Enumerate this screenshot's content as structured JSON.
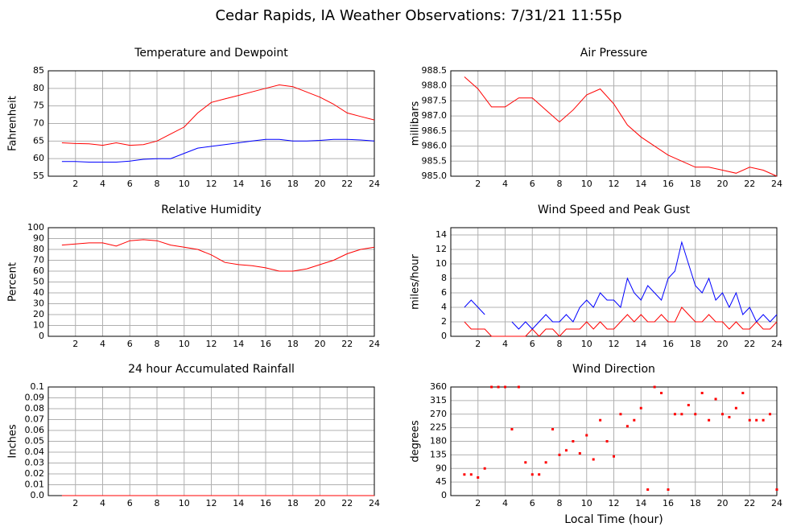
{
  "title": "Cedar Rapids, IA Weather Observations: 7/31/21 11:55p",
  "chart_data": [
    {
      "type": "line",
      "title": "Temperature and Dewpoint",
      "ylabel": "Fahrenheit",
      "x": [
        1,
        2,
        3,
        4,
        5,
        6,
        7,
        8,
        9,
        10,
        11,
        12,
        13,
        14,
        15,
        16,
        17,
        18,
        19,
        20,
        21,
        22,
        23,
        24
      ],
      "series": [
        {
          "color": "#ff0000",
          "values": [
            64.5,
            64.3,
            64.2,
            63.8,
            64.5,
            63.8,
            64,
            65,
            67,
            69,
            73,
            76,
            77,
            78,
            79,
            80,
            81,
            80.5,
            79,
            77.5,
            75.5,
            73,
            72,
            71
          ]
        },
        {
          "color": "#0000ff",
          "values": [
            59.2,
            59.2,
            59,
            59,
            59,
            59.3,
            59.8,
            60,
            60,
            61.5,
            63,
            63.5,
            64,
            64.5,
            65,
            65.5,
            65.5,
            65,
            65,
            65.2,
            65.5,
            65.5,
            65.3,
            65
          ]
        }
      ],
      "xlim": [
        0,
        24
      ],
      "xticks": [
        2,
        4,
        6,
        8,
        10,
        12,
        14,
        16,
        18,
        20,
        22,
        24
      ],
      "ylim": [
        55,
        85
      ],
      "yticks": [
        55,
        60,
        65,
        70,
        75,
        80,
        85
      ],
      "grid": true
    },
    {
      "type": "line",
      "title": "Air Pressure",
      "ylabel": "millibars",
      "x": [
        1,
        2,
        3,
        4,
        5,
        6,
        7,
        8,
        9,
        10,
        11,
        12,
        13,
        14,
        15,
        16,
        17,
        18,
        19,
        20,
        21,
        22,
        23,
        24
      ],
      "series": [
        {
          "color": "#ff0000",
          "values": [
            988.3,
            987.9,
            987.3,
            987.3,
            987.6,
            987.6,
            987.2,
            986.8,
            987.2,
            987.7,
            987.9,
            987.4,
            986.7,
            986.3,
            986.0,
            985.7,
            985.5,
            985.3,
            985.3,
            985.2,
            985.1,
            985.3,
            985.2,
            985.0
          ]
        }
      ],
      "xlim": [
        0,
        24
      ],
      "xticks": [
        2,
        4,
        6,
        8,
        10,
        12,
        14,
        16,
        18,
        20,
        22,
        24
      ],
      "ylim": [
        985,
        988.5
      ],
      "yticks": [
        {
          "value": 985,
          "label": "985.0"
        },
        985.5,
        {
          "value": 986,
          "label": "986.0"
        },
        986.5,
        {
          "value": 987,
          "label": "987.0"
        },
        987.5,
        {
          "value": 988,
          "label": "988.0"
        },
        988.5
      ],
      "grid": true
    },
    {
      "type": "line",
      "title": "Relative Humidity",
      "ylabel": "Percent",
      "x": [
        1,
        2,
        3,
        4,
        5,
        6,
        7,
        8,
        9,
        10,
        11,
        12,
        13,
        14,
        15,
        16,
        17,
        18,
        19,
        20,
        21,
        22,
        23,
        24
      ],
      "series": [
        {
          "color": "#ff0000",
          "values": [
            84,
            85,
            86,
            86,
            83,
            88,
            89,
            88,
            84,
            82,
            80,
            75,
            68,
            66,
            65,
            63,
            60,
            60,
            62,
            66,
            70,
            76,
            80,
            82
          ]
        }
      ],
      "xlim": [
        0,
        24
      ],
      "xticks": [
        2,
        4,
        6,
        8,
        10,
        12,
        14,
        16,
        18,
        20,
        22,
        24
      ],
      "ylim": [
        0,
        100
      ],
      "yticks": [
        0,
        10,
        20,
        30,
        40,
        50,
        60,
        70,
        80,
        90,
        100
      ],
      "grid": true
    },
    {
      "type": "line",
      "title": "Wind Speed and Peak Gust",
      "ylabel": "miles/hour",
      "x": [
        1,
        1.5,
        2,
        2.5,
        3,
        3.5,
        4,
        4.5,
        5,
        5.5,
        6,
        6.5,
        7,
        7.5,
        8,
        8.5,
        9,
        9.5,
        10,
        10.5,
        11,
        11.5,
        12,
        12.5,
        13,
        13.5,
        14,
        14.5,
        15,
        15.5,
        16,
        16.5,
        17,
        17.5,
        18,
        18.5,
        19,
        19.5,
        20,
        20.5,
        21,
        21.5,
        22,
        22.5,
        23,
        23.5,
        24
      ],
      "series": [
        {
          "color": "#ff0000",
          "values": [
            2,
            1,
            1,
            1,
            0,
            0,
            0,
            0,
            0,
            0,
            1,
            0,
            1,
            1,
            0,
            1,
            1,
            1,
            2,
            1,
            2,
            1,
            1,
            2,
            3,
            2,
            3,
            2,
            2,
            3,
            2,
            2,
            4,
            3,
            2,
            2,
            3,
            2,
            2,
            1,
            2,
            1,
            1,
            2,
            1,
            1,
            2
          ]
        },
        {
          "color": "#0000ff",
          "values": [
            4,
            5,
            4,
            3,
            null,
            null,
            null,
            2,
            1,
            2,
            1,
            2,
            3,
            2,
            2,
            3,
            2,
            4,
            5,
            4,
            6,
            5,
            5,
            4,
            8,
            6,
            5,
            7,
            6,
            5,
            8,
            9,
            13,
            10,
            7,
            6,
            8,
            5,
            6,
            4,
            6,
            3,
            4,
            2,
            3,
            2,
            3
          ]
        }
      ],
      "xlim": [
        0,
        24
      ],
      "xticks": [
        2,
        4,
        6,
        8,
        10,
        12,
        14,
        16,
        18,
        20,
        22,
        24
      ],
      "ylim": [
        0,
        15
      ],
      "yticks": [
        0,
        2,
        4,
        6,
        8,
        10,
        12,
        14
      ],
      "grid": true
    },
    {
      "type": "line",
      "title": "24 hour Accumulated Rainfall",
      "ylabel": "Inches",
      "x": [
        1,
        2,
        3,
        4,
        5,
        6,
        7,
        8,
        9,
        10,
        11,
        12,
        13,
        14,
        15,
        16,
        17,
        18,
        19,
        20,
        21,
        22,
        23,
        24
      ],
      "series": [
        {
          "color": "#ff0000",
          "values": [
            0,
            0,
            0,
            0,
            0,
            0,
            0,
            0,
            0,
            0,
            0,
            0,
            0,
            0,
            0,
            0,
            0,
            0,
            0,
            0,
            0,
            0,
            0,
            0
          ]
        }
      ],
      "xlim": [
        0,
        24
      ],
      "xticks": [
        2,
        4,
        6,
        8,
        10,
        12,
        14,
        16,
        18,
        20,
        22,
        24
      ],
      "ylim": [
        0,
        0.1
      ],
      "yticks": [
        {
          "value": 0,
          "label": "0.0"
        },
        0.01,
        0.02,
        0.03,
        0.04,
        0.05,
        0.06,
        0.07,
        0.08,
        0.09,
        0.1
      ],
      "grid": true
    },
    {
      "type": "scatter",
      "title": "Wind Direction",
      "ylabel": "degrees",
      "xlabel": "Local Time (hour)",
      "x": [
        1,
        1.5,
        2,
        2.5,
        3,
        3.5,
        4,
        4.5,
        5,
        5.5,
        6,
        6.5,
        7,
        7.5,
        8,
        8.5,
        9,
        9.5,
        10,
        10.5,
        11,
        11.5,
        12,
        12.5,
        13,
        13.5,
        14,
        14.5,
        15,
        15.5,
        16,
        16.5,
        17,
        17.5,
        18,
        18.5,
        19,
        19.5,
        20,
        20.5,
        21,
        21.5,
        22,
        22.5,
        23,
        23.5,
        24
      ],
      "values": [
        70,
        70,
        60,
        90,
        360,
        360,
        360,
        220,
        360,
        110,
        70,
        70,
        110,
        220,
        135,
        150,
        180,
        140,
        200,
        120,
        250,
        180,
        130,
        270,
        230,
        250,
        290,
        20,
        360,
        340,
        20,
        270,
        270,
        300,
        270,
        340,
        250,
        320,
        270,
        260,
        290,
        340,
        250,
        250,
        250,
        270,
        20
      ],
      "color": "#ff0000",
      "xlim": [
        0,
        24
      ],
      "xticks": [
        2,
        4,
        6,
        8,
        10,
        12,
        14,
        16,
        18,
        20,
        22,
        24
      ],
      "ylim": [
        0,
        360
      ],
      "yticks": [
        0,
        45,
        90,
        135,
        180,
        225,
        270,
        315,
        360
      ],
      "grid": true
    }
  ]
}
